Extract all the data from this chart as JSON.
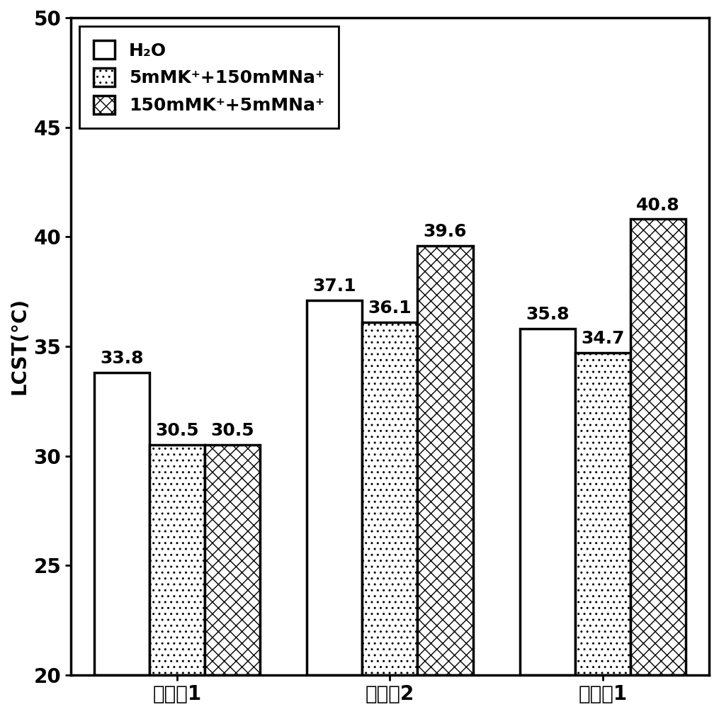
{
  "categories": [
    "对比例1",
    "对比例2",
    "实施例1"
  ],
  "series": [
    {
      "label": "H₂O",
      "values": [
        33.8,
        37.1,
        35.8
      ],
      "hatch": "",
      "facecolor": "white",
      "edgecolor": "black"
    },
    {
      "label": "5mMK⁺+150mMNa⁺",
      "values": [
        30.5,
        36.1,
        34.7
      ],
      "hatch": "..",
      "facecolor": "white",
      "edgecolor": "black"
    },
    {
      "label": "150mMK⁺+5mMNa⁺",
      "values": [
        30.5,
        39.6,
        40.8
      ],
      "hatch": "xx",
      "facecolor": "white",
      "edgecolor": "black"
    }
  ],
  "ylim": [
    20,
    50
  ],
  "yticks": [
    20,
    25,
    30,
    35,
    40,
    45,
    50
  ],
  "ylabel": "LCST(°C)",
  "bar_width": 0.26,
  "title": "",
  "fontsize_labels": 20,
  "fontsize_ticks": 20,
  "fontsize_values": 18,
  "fontsize_legend": 18,
  "background_color": "white",
  "linewidth": 2.5
}
